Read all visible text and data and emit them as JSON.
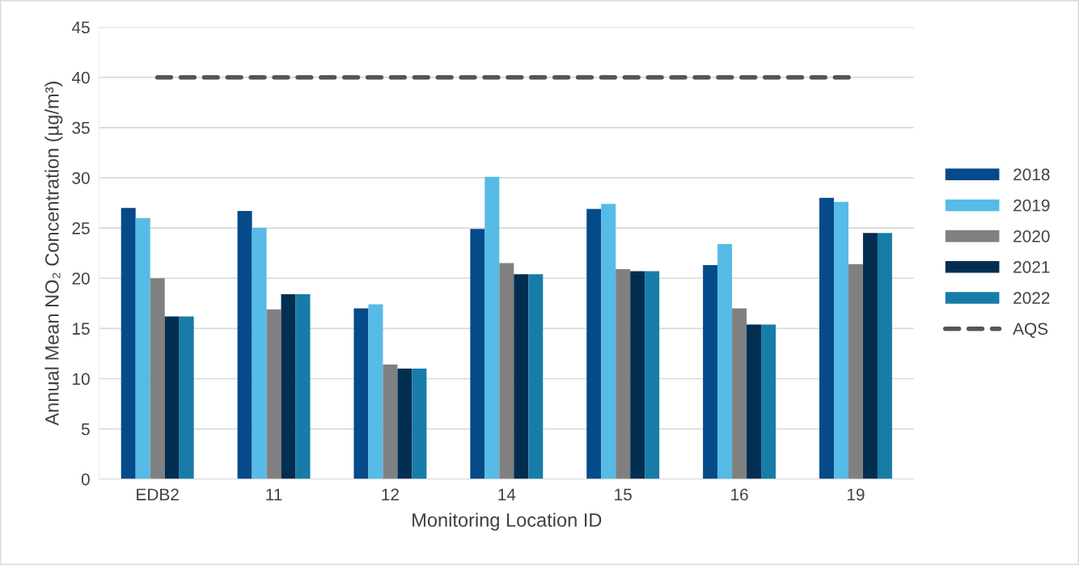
{
  "chart_data": {
    "type": "bar",
    "xlabel": "Monitoring Location ID",
    "ylabel": "Annual Mean NO₂ Concentration (µg/m³)",
    "categories": [
      "EDB2",
      "11",
      "12",
      "14",
      "15",
      "16",
      "19"
    ],
    "series": [
      {
        "name": "2018",
        "color": "#054a89",
        "values": [
          27.0,
          26.7,
          17.0,
          24.9,
          26.9,
          21.3,
          28.0
        ]
      },
      {
        "name": "2019",
        "color": "#56bbe6",
        "values": [
          26.0,
          25.0,
          17.4,
          30.1,
          27.4,
          23.4,
          27.6
        ]
      },
      {
        "name": "2020",
        "color": "#808080",
        "values": [
          20.0,
          16.9,
          11.4,
          21.5,
          20.9,
          17.0,
          21.4
        ]
      },
      {
        "name": "2021",
        "color": "#022e52",
        "values": [
          16.2,
          18.4,
          11.0,
          20.4,
          20.7,
          15.4,
          24.5
        ]
      },
      {
        "name": "2022",
        "color": "#187ca8",
        "values": [
          16.2,
          18.4,
          11.0,
          20.4,
          20.7,
          15.4,
          24.5
        ]
      },
      {
        "name": "AQS",
        "type": "line",
        "color": "#555555",
        "line_style": "dashed",
        "values": [
          40,
          40,
          40,
          40,
          40,
          40,
          40
        ]
      }
    ],
    "ylim": [
      0,
      45
    ],
    "yticks": [
      0,
      5,
      10,
      15,
      20,
      25,
      30,
      35,
      40,
      45
    ],
    "grid": "y",
    "legend": "right"
  }
}
